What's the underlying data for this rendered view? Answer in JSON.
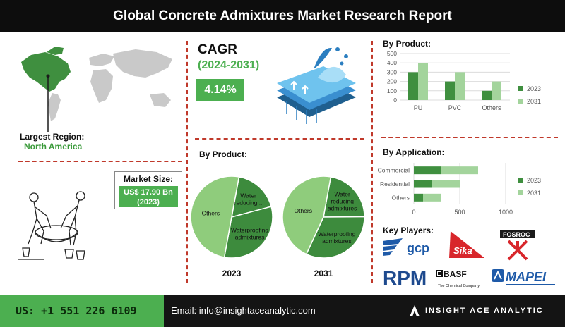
{
  "header": {
    "title": "Global Concrete Admixtures Market Research Report"
  },
  "region": {
    "label": "Largest Region:",
    "value": "North America"
  },
  "cagr": {
    "title": "CAGR",
    "years": "(2024-2031)",
    "value": "4.14%"
  },
  "market_size": {
    "label": "Market Size:",
    "value": "US$ 17.90 Bn",
    "year": "(2023)"
  },
  "key_players": {
    "title": "Key Players:",
    "logos": {
      "gcp": "gcp",
      "sika": "Sika",
      "fosroc": "FOSROC",
      "rpm": "RPM",
      "basf": "BASF",
      "basf_tag": "The Chemical Company",
      "mapei": "MAPEI"
    }
  },
  "footer": {
    "phone": "US: +1 551 226 6109",
    "email": "Email: info@insightaceanalytic.com",
    "brand": "INSIGHT ACE ANALYTIC"
  },
  "colors": {
    "dark_green": "#3f8f3f",
    "light_green": "#a3d49c",
    "pie_dark": "#3d8b3d",
    "pie_light": "#8fcc7c",
    "accent_red": "#c0392b"
  },
  "chart_data": [
    {
      "type": "bar",
      "title": "By Product:",
      "categories": [
        "PU",
        "PVC",
        "Others"
      ],
      "series": [
        {
          "name": "2023",
          "values": [
            300,
            200,
            100
          ]
        },
        {
          "name": "2031",
          "values": [
            400,
            300,
            200
          ]
        }
      ],
      "ylim": [
        0,
        500
      ],
      "yticks": [
        0,
        100,
        200,
        300,
        400,
        500
      ],
      "grid": true,
      "legend": "right"
    },
    {
      "type": "bar",
      "orientation": "horizontal",
      "stacked": true,
      "title": "By Application:",
      "categories": [
        "Commercial",
        "Residential",
        "Others"
      ],
      "series": [
        {
          "name": "2023",
          "values": [
            300,
            200,
            100
          ]
        },
        {
          "name": "2031",
          "values": [
            400,
            300,
            200
          ]
        }
      ],
      "xlim": [
        0,
        1000
      ],
      "xticks": [
        0,
        500,
        1000
      ],
      "grid": true,
      "legend": "right"
    },
    {
      "type": "pie",
      "title": "By Product:",
      "caption": "2023",
      "slices": [
        {
          "label": "Water reducing...",
          "value": 18
        },
        {
          "label": "Waterproofing admixtures",
          "value": 32
        },
        {
          "label": "Others",
          "value": 50
        }
      ]
    },
    {
      "type": "pie",
      "caption": "2031",
      "slices": [
        {
          "label": "Water reducing admixtures",
          "value": 22
        },
        {
          "label": "Waterproofing admixtures",
          "value": 32
        },
        {
          "label": "Others",
          "value": 46
        }
      ]
    }
  ]
}
